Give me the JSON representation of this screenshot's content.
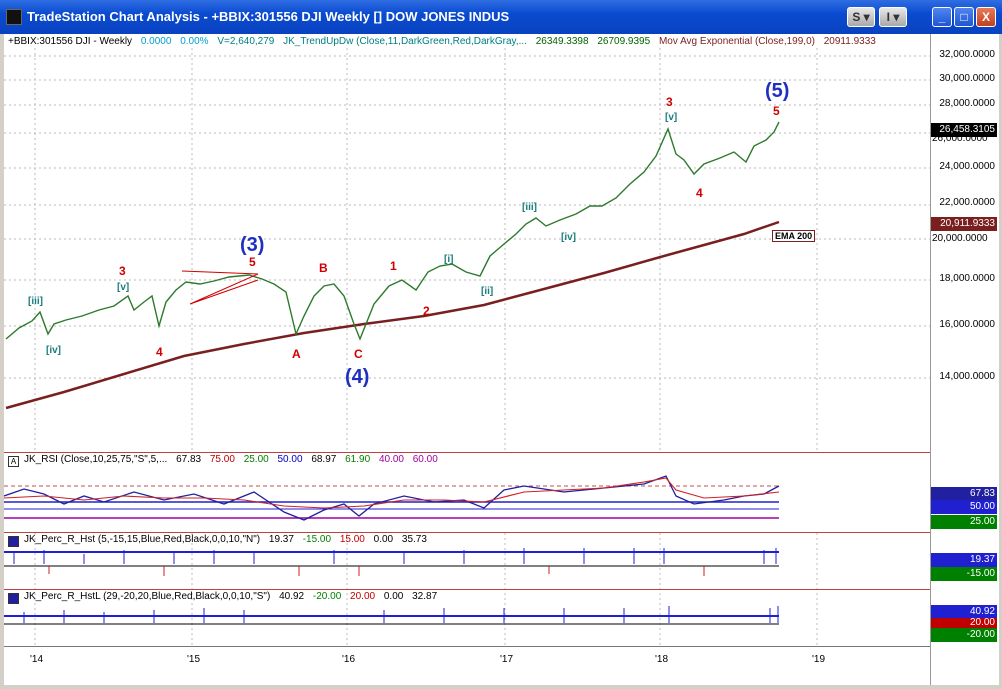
{
  "window": {
    "title": "TradeStation Chart Analysis - +BBIX:301556 DJI Weekly [] DOW JONES INDUS",
    "buttons": [
      "S",
      "I",
      "_",
      "□",
      "X"
    ]
  },
  "header": {
    "symbol": "+BBIX:301556 DJI - Weekly",
    "change": "0.0000",
    "change_pct": "0.00%",
    "volume": "V=2,640,279",
    "trend_indicator": "JK_TrendUpDw (Close,11,DarkGreen,Red,DarkGray,...",
    "trend_v1": "26349.3398",
    "trend_v2": "26709.9395",
    "ma_label": "Mov Avg Exponential (Close,199,0)",
    "ma_value": "20911.9333"
  },
  "price_axis": {
    "labels": [
      "32,000.0000",
      "30,000.0000",
      "28,000.0000",
      "26,000.0000",
      "24,000.0000",
      "22,000.0000",
      "20,000.0000",
      "18,000.0000",
      "16,000.0000",
      "14,000.0000"
    ],
    "last_price": "26,458.3105",
    "ema_value": "20,911.9333",
    "ema_tag": "EMA 200"
  },
  "wave_labels": {
    "big": [
      "(3)",
      "(4)",
      "(5)"
    ],
    "red": [
      "3",
      "4",
      "5",
      "A",
      "B",
      "C",
      "1",
      "2",
      "3",
      "4",
      "5"
    ],
    "teal": [
      "[iii]",
      "[iv]",
      "[v]",
      "[i]",
      "[ii]",
      "[iii]",
      "[iv]",
      "[v]"
    ]
  },
  "rsi_pane": {
    "icon": "A",
    "name": "JK_RSI (Close,10,25,75,\"S\",5,...",
    "values": [
      "67.83",
      "75.00",
      "25.00",
      "50.00",
      "68.97",
      "61.90",
      "40.00",
      "60.00"
    ],
    "axis_boxes": [
      "67.83",
      "50.00",
      "25.00"
    ]
  },
  "perc_pane": {
    "name": "JK_Perc_R_Hst (5,-15,15,Blue,Red,Black,0,0,10,\"N\")",
    "values": [
      "19.37",
      "-15.00",
      "15.00",
      "0.00",
      "35.73"
    ],
    "axis_boxes": [
      "19.37",
      "-15.00"
    ]
  },
  "percl_pane": {
    "name": "JK_Perc_R_HstL (29,-20,20,Blue,Red,Black,0,0,10,\"S\")",
    "values": [
      "40.92",
      "-20.00",
      "20.00",
      "0.00",
      "32.87"
    ],
    "axis_boxes": [
      "40.92",
      "20.00",
      "-20.00"
    ]
  },
  "time_axis": [
    "'14",
    "'15",
    "'16",
    "'17",
    "'18",
    "'19"
  ],
  "colors": {
    "price_bars": "#2d7a2d",
    "ema": "#7a1f1f",
    "wave_red": "#d00000",
    "wave_teal": "#1a7d7d",
    "wave_big": "#1f2fbf"
  }
}
